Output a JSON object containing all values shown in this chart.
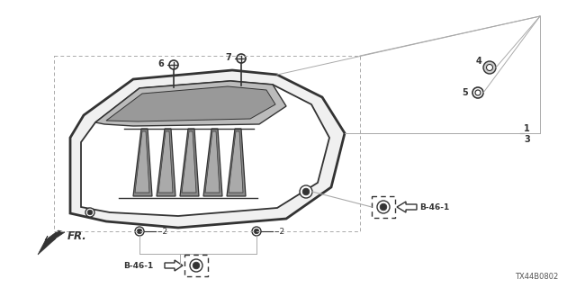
{
  "bg_color": "#ffffff",
  "line_color": "#333333",
  "diagram_id": "TX44B0802",
  "lgray": "#aaaaaa",
  "label_6": "6",
  "label_7": "7",
  "label_4": "4",
  "label_5": "5",
  "label_1": "1",
  "label_3": "3",
  "label_2": "2",
  "label_b46": "B-46-1",
  "label_fr": "FR."
}
